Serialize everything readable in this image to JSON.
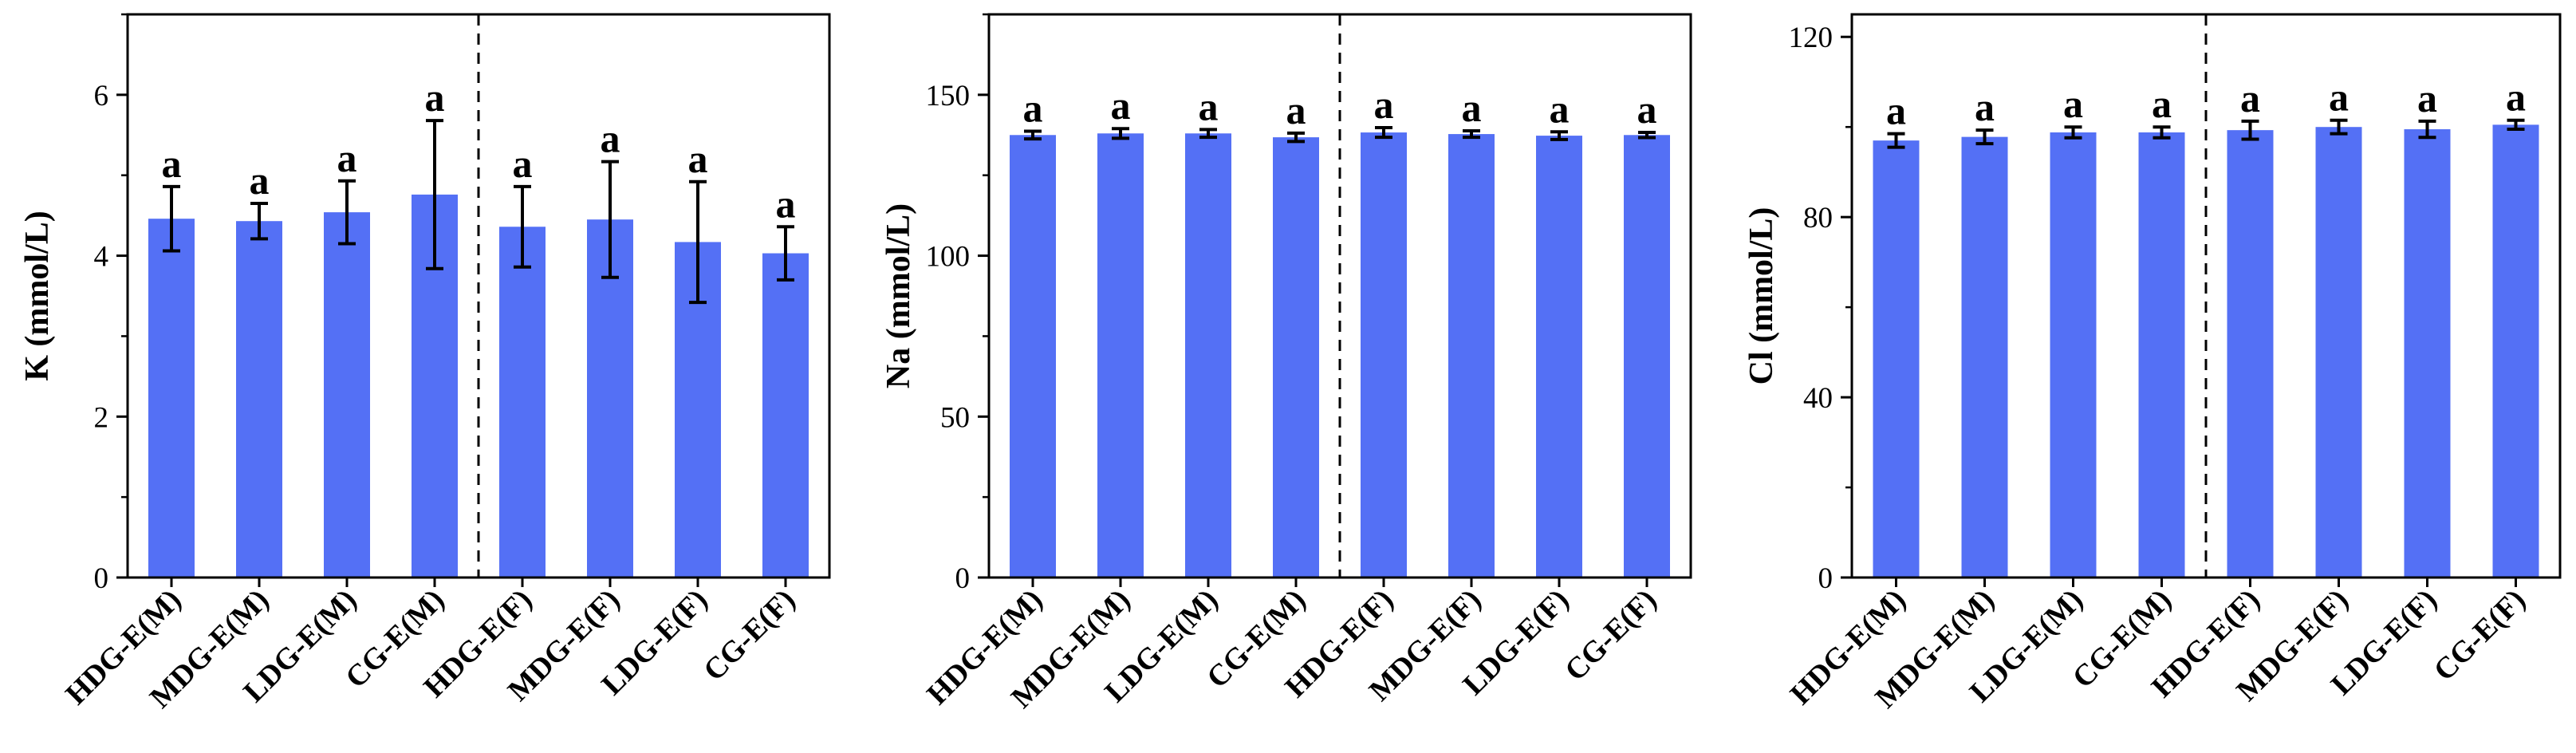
{
  "colors": {
    "bar": "#5470f5",
    "axis": "#000000",
    "error_bar": "#000000",
    "background": "#ffffff"
  },
  "chart_data": [
    {
      "type": "bar",
      "categories": [
        "HDG-E(M)",
        "MDG-E(M)",
        "LDG-E(M)",
        "CG-E(M)",
        "HDG-E(F)",
        "MDG-E(F)",
        "LDG-E(F)",
        "CG-E(F)"
      ],
      "values": [
        4.46,
        4.43,
        4.54,
        4.76,
        4.36,
        4.45,
        4.17,
        4.03
      ],
      "errors": [
        0.4,
        0.22,
        0.39,
        0.92,
        0.5,
        0.72,
        0.75,
        0.33
      ],
      "significance": [
        "a",
        "a",
        "a",
        "a",
        "a",
        "a",
        "a",
        "a"
      ],
      "xlabel": "",
      "ylabel": "K (mmol/L)",
      "ylim": [
        0,
        7
      ],
      "yticks": [
        0,
        2,
        4,
        6
      ],
      "yticks_minor": [
        1,
        3,
        5,
        7
      ],
      "divider_after_index": 3,
      "grid": false
    },
    {
      "type": "bar",
      "categories": [
        "HDG-E(M)",
        "MDG-E(M)",
        "LDG-E(M)",
        "CG-E(M)",
        "HDG-E(F)",
        "MDG-E(F)",
        "LDG-E(F)",
        "CG-E(F)"
      ],
      "values": [
        137.5,
        138.0,
        138.0,
        136.8,
        138.3,
        137.8,
        137.3,
        137.5
      ],
      "errors": [
        1.2,
        1.5,
        1.2,
        1.3,
        1.5,
        1.0,
        1.2,
        0.8
      ],
      "significance": [
        "a",
        "a",
        "a",
        "a",
        "a",
        "a",
        "a",
        "a"
      ],
      "xlabel": "",
      "ylabel": "Na (mmol/L)",
      "ylim": [
        0,
        175
      ],
      "yticks": [
        0,
        50,
        100,
        150
      ],
      "yticks_minor": [
        25,
        75,
        125,
        175
      ],
      "divider_after_index": 3,
      "grid": false
    },
    {
      "type": "bar",
      "categories": [
        "HDG-E(M)",
        "MDG-E(M)",
        "LDG-E(M)",
        "CG-E(M)",
        "HDG-E(F)",
        "MDG-E(F)",
        "LDG-E(F)",
        "CG-E(F)"
      ],
      "values": [
        97.0,
        97.8,
        98.8,
        98.8,
        99.3,
        100.0,
        99.5,
        100.5
      ],
      "errors": [
        1.5,
        1.5,
        1.2,
        1.2,
        2.0,
        1.5,
        1.8,
        1.0
      ],
      "significance": [
        "a",
        "a",
        "a",
        "a",
        "a",
        "a",
        "a",
        "a"
      ],
      "xlabel": "",
      "ylabel": "Cl (mmol/L)",
      "ylim": [
        0,
        125
      ],
      "yticks": [
        0,
        40,
        80,
        120
      ],
      "yticks_minor": [
        20,
        60,
        100
      ],
      "divider_after_index": 3,
      "grid": false
    }
  ]
}
